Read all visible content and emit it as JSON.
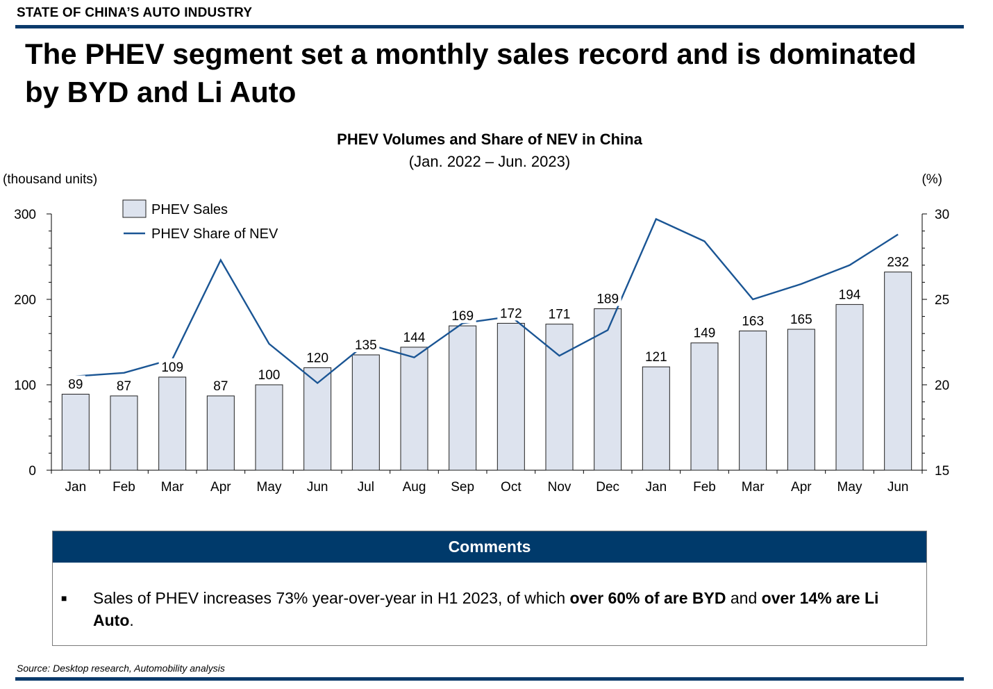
{
  "header": {
    "section_label": "STATE OF CHINA’S AUTO INDUSTRY",
    "headline": "The PHEV segment set a monthly sales record and is dominated by BYD and Li Auto"
  },
  "chart_data": {
    "type": "bar",
    "title": "PHEV Volumes and Share of NEV in China",
    "subtitle": "(Jan. 2022 – Jun. 2023)",
    "y_left_unit": "(thousand units)",
    "y_right_unit": "(%)",
    "categories": [
      "Jan",
      "Feb",
      "Mar",
      "Apr",
      "May",
      "Jun",
      "Jul",
      "Aug",
      "Sep",
      "Oct",
      "Nov",
      "Dec",
      "Jan",
      "Feb",
      "Mar",
      "Apr",
      "May",
      "Jun"
    ],
    "series": [
      {
        "name": "PHEV Sales",
        "type": "bar",
        "axis": "left",
        "values": [
          89,
          87,
          109,
          87,
          100,
          120,
          135,
          144,
          169,
          172,
          171,
          189,
          121,
          149,
          163,
          165,
          194,
          232
        ],
        "data_labels": [
          "89",
          "87",
          "109",
          "87",
          "100",
          "120",
          "135",
          "144",
          "169",
          "172",
          "171",
          "189",
          "121",
          "149",
          "163",
          "165",
          "194",
          "232"
        ]
      },
      {
        "name": "PHEV Share of NEV",
        "type": "line",
        "axis": "right",
        "values": [
          20.5,
          20.7,
          21.5,
          27.3,
          22.4,
          20.1,
          22.4,
          21.6,
          23.6,
          24.0,
          21.7,
          23.2,
          29.7,
          28.4,
          25.0,
          25.9,
          27.0,
          28.8
        ]
      }
    ],
    "y_left": {
      "lim": [
        0,
        300
      ],
      "ticks": [
        0,
        100,
        200,
        300
      ]
    },
    "y_right": {
      "lim": [
        15,
        30
      ],
      "ticks": [
        15,
        20,
        25,
        30
      ]
    },
    "legend_position": "top-left",
    "grid": false,
    "colors": {
      "bar_fill": "#dde3ee",
      "bar_stroke": "#1f1f1f",
      "line": "#1a5594"
    }
  },
  "comments": {
    "header": "Comments",
    "bullet": "■",
    "text_parts": [
      {
        "text": "Sales of PHEV increases 73% year-over-year in H1 2023, of which ",
        "bold": false
      },
      {
        "text": "over 60% of are BYD",
        "bold": true
      },
      {
        "text": " and ",
        "bold": false
      },
      {
        "text": "over 14% are Li Auto",
        "bold": true
      },
      {
        "text": ".",
        "bold": false
      }
    ]
  },
  "footer": {
    "source": "Source: Desktop research, Automobility analysis"
  },
  "colors": {
    "accent": "#0b3a6b",
    "comments_header": "#003a6b"
  }
}
